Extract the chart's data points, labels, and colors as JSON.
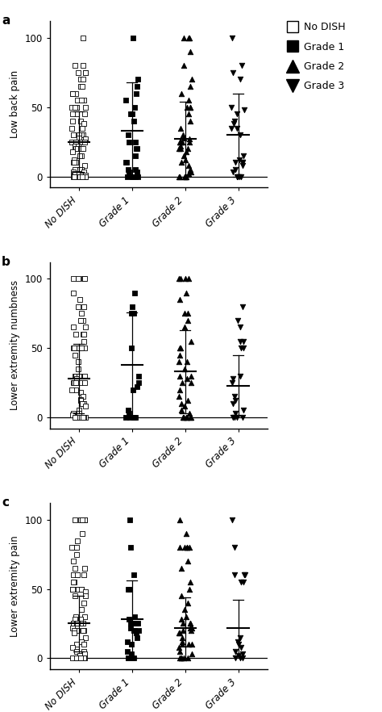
{
  "panels": [
    {
      "label": "a",
      "ylabel": "Low back pain",
      "groups": [
        {
          "name": "No DISH",
          "x": 0,
          "marker": "s",
          "filled": false,
          "mean": 25,
          "sd": 22,
          "points": [
            100,
            80,
            80,
            75,
            75,
            75,
            70,
            70,
            65,
            65,
            60,
            60,
            60,
            55,
            55,
            55,
            50,
            50,
            50,
            50,
            50,
            50,
            45,
            45,
            45,
            40,
            40,
            38,
            35,
            35,
            30,
            30,
            30,
            30,
            28,
            27,
            25,
            25,
            25,
            25,
            25,
            25,
            25,
            22,
            22,
            20,
            20,
            20,
            20,
            18,
            15,
            15,
            12,
            10,
            10,
            10,
            8,
            5,
            5,
            5,
            5,
            3,
            3,
            2,
            2,
            2,
            2,
            1,
            1,
            0,
            0,
            0,
            0,
            0,
            0,
            0,
            0,
            0,
            0,
            0,
            0,
            0,
            0,
            0,
            0,
            0
          ]
        },
        {
          "name": "Grade 1",
          "x": 1,
          "marker": "s",
          "filled": true,
          "mean": 33,
          "sd": 35,
          "points": [
            100,
            70,
            65,
            60,
            55,
            50,
            45,
            45,
            40,
            30,
            25,
            25,
            20,
            20,
            15,
            10,
            10,
            5,
            5,
            3,
            3,
            0,
            0,
            0,
            0,
            0
          ]
        },
        {
          "name": "Grade 2",
          "x": 2,
          "marker": "^",
          "filled": true,
          "mean": 27,
          "sd": 27,
          "points": [
            100,
            100,
            100,
            90,
            80,
            70,
            65,
            60,
            55,
            50,
            50,
            50,
            45,
            40,
            35,
            30,
            28,
            27,
            25,
            25,
            25,
            25,
            25,
            22,
            20,
            20,
            20,
            18,
            15,
            12,
            10,
            8,
            5,
            3,
            2,
            0,
            0,
            0,
            0,
            0
          ]
        },
        {
          "name": "Grade 3",
          "x": 3,
          "marker": "v",
          "filled": true,
          "mean": 30,
          "sd": 30,
          "points": [
            100,
            80,
            75,
            70,
            50,
            48,
            45,
            40,
            38,
            35,
            35,
            30,
            15,
            12,
            10,
            10,
            10,
            8,
            5,
            3,
            0,
            0,
            0,
            0
          ]
        }
      ]
    },
    {
      "label": "b",
      "ylabel": "Lower extremity numbness",
      "groups": [
        {
          "name": "No DISH",
          "x": 0,
          "marker": "s",
          "filled": false,
          "mean": 28,
          "sd": 25,
          "points": [
            100,
            100,
            100,
            100,
            90,
            85,
            80,
            80,
            75,
            70,
            70,
            70,
            70,
            65,
            65,
            60,
            60,
            60,
            55,
            50,
            50,
            50,
            50,
            50,
            50,
            45,
            40,
            35,
            30,
            30,
            30,
            30,
            30,
            30,
            30,
            28,
            25,
            25,
            25,
            25,
            25,
            25,
            25,
            20,
            20,
            18,
            15,
            13,
            12,
            10,
            10,
            10,
            8,
            5,
            3,
            3,
            2,
            0,
            0,
            0,
            0,
            0,
            0,
            0,
            0,
            0
          ]
        },
        {
          "name": "Grade 1",
          "x": 1,
          "marker": "s",
          "filled": true,
          "mean": 38,
          "sd": 38,
          "points": [
            90,
            80,
            75,
            75,
            50,
            30,
            25,
            22,
            20,
            5,
            3,
            0,
            0,
            0,
            0
          ]
        },
        {
          "name": "Grade 2",
          "x": 2,
          "marker": "^",
          "filled": true,
          "mean": 33,
          "sd": 30,
          "points": [
            100,
            100,
            100,
            100,
            90,
            85,
            75,
            75,
            70,
            65,
            55,
            50,
            50,
            45,
            40,
            40,
            35,
            30,
            30,
            28,
            25,
            25,
            20,
            15,
            12,
            10,
            8,
            5,
            3,
            0,
            0,
            0,
            0,
            0,
            0
          ]
        },
        {
          "name": "Grade 3",
          "x": 3,
          "marker": "v",
          "filled": true,
          "mean": 23,
          "sd": 22,
          "points": [
            80,
            70,
            65,
            55,
            55,
            50,
            50,
            30,
            28,
            25,
            15,
            12,
            10,
            5,
            3,
            0,
            0,
            0,
            0
          ]
        }
      ]
    },
    {
      "label": "c",
      "ylabel": "Lower extremity pain",
      "groups": [
        {
          "name": "No DISH",
          "x": 0,
          "marker": "s",
          "filled": false,
          "mean": 25,
          "sd": 20,
          "points": [
            100,
            100,
            100,
            100,
            100,
            90,
            85,
            80,
            80,
            80,
            75,
            70,
            65,
            65,
            60,
            60,
            60,
            60,
            55,
            55,
            50,
            50,
            50,
            50,
            50,
            50,
            50,
            48,
            45,
            45,
            40,
            35,
            30,
            30,
            28,
            28,
            25,
            25,
            25,
            25,
            25,
            25,
            22,
            20,
            20,
            20,
            20,
            18,
            15,
            12,
            10,
            10,
            8,
            5,
            5,
            3,
            2,
            0,
            0,
            0,
            0,
            0,
            0,
            0,
            0,
            0,
            0,
            0,
            0
          ]
        },
        {
          "name": "Grade 1",
          "x": 1,
          "marker": "s",
          "filled": true,
          "mean": 28,
          "sd": 28,
          "points": [
            100,
            80,
            60,
            50,
            50,
            30,
            28,
            25,
            25,
            25,
            25,
            22,
            20,
            20,
            20,
            18,
            15,
            12,
            10,
            5,
            3,
            0,
            0,
            0,
            0
          ]
        },
        {
          "name": "Grade 2",
          "x": 2,
          "marker": "^",
          "filled": true,
          "mean": 22,
          "sd": 22,
          "points": [
            100,
            90,
            80,
            80,
            80,
            80,
            80,
            70,
            65,
            55,
            50,
            45,
            40,
            35,
            30,
            28,
            25,
            25,
            25,
            22,
            22,
            20,
            20,
            18,
            18,
            15,
            12,
            10,
            10,
            10,
            8,
            5,
            3,
            0,
            0,
            0,
            0,
            0
          ]
        },
        {
          "name": "Grade 3",
          "x": 3,
          "marker": "v",
          "filled": true,
          "mean": 22,
          "sd": 20,
          "points": [
            100,
            80,
            60,
            60,
            60,
            55,
            55,
            15,
            12,
            10,
            8,
            5,
            3,
            2,
            0,
            0,
            0
          ]
        }
      ]
    }
  ],
  "xticklabels": [
    "No DISH",
    "Grade 1",
    "Grade 2",
    "Grade 3"
  ],
  "ylim": [
    -8,
    112
  ],
  "yticks": [
    0,
    50,
    100
  ],
  "background_color": "#ffffff",
  "fontsize": 8.5,
  "label_fontsize": 11,
  "legend_fontsize": 9,
  "jitter_scale": 0.13
}
